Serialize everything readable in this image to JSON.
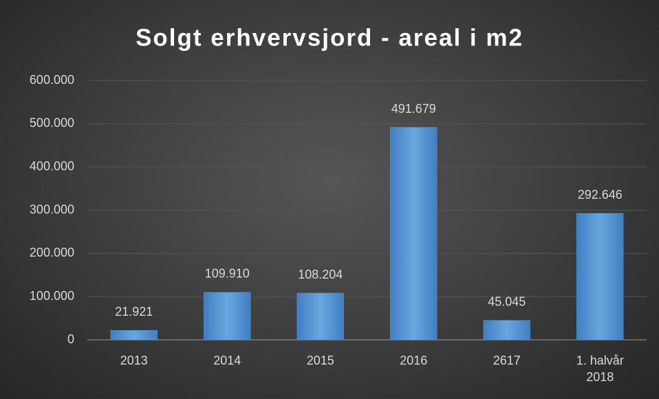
{
  "chart_data": {
    "type": "bar",
    "title": "Solgt erhvervsjord - areal i m2",
    "categories": [
      "2013",
      "2014",
      "2015",
      "2016",
      "2617",
      "1. halvår 2018"
    ],
    "values": [
      21921,
      109910,
      108204,
      491679,
      45045,
      292646
    ],
    "value_labels": [
      "21.921",
      "109.910",
      "108.204",
      "491.679",
      "45.045",
      "292.646"
    ],
    "color": "#5b9bd5",
    "ylim": [
      0,
      600000
    ],
    "yticks": [
      0,
      {
        "value": 100000,
        "label": "100.000"
      },
      {
        "value": 200000,
        "label": "200.000"
      },
      {
        "value": 300000,
        "label": "300.000"
      },
      {
        "value": 400000,
        "label": "400.000"
      },
      {
        "value": 500000,
        "label": "500.000"
      },
      {
        "value": 600000,
        "label": "600.000"
      }
    ],
    "grid": true
  }
}
